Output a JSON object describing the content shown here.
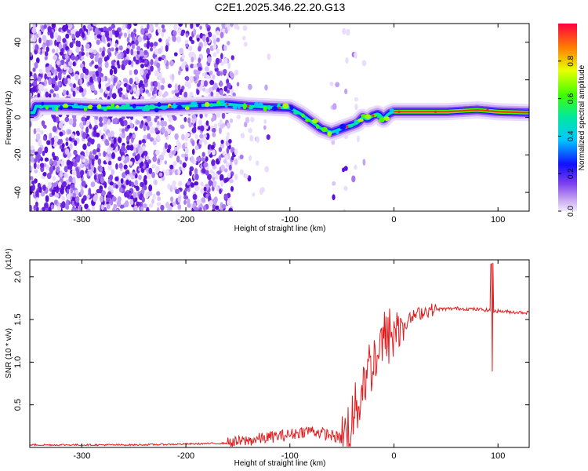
{
  "title": "C2E1.2025.346.22.20.G13",
  "chart_data": [
    {
      "type": "heatmap",
      "xlabel": "Height of straight line (km)",
      "ylabel": "Frequency (Hz)",
      "xlim": [
        -350,
        130
      ],
      "ylim": [
        -50,
        50
      ],
      "xticks": [
        -300,
        -200,
        -100,
        0,
        100
      ],
      "yticks": [
        -40,
        -20,
        0,
        20,
        40
      ],
      "ridge": {
        "x": [
          -345,
          -320,
          -300,
          -280,
          -250,
          -220,
          -200,
          -180,
          -160,
          -140,
          -120,
          -100,
          -90,
          -80,
          -70,
          -60,
          -50,
          -45,
          -40,
          -35,
          -30,
          -25,
          -20,
          -15,
          -10,
          -5,
          0,
          20,
          50,
          80,
          100,
          130
        ],
        "frequency": [
          6,
          6,
          5.5,
          5,
          5,
          5.5,
          6,
          6.5,
          7,
          6,
          5.5,
          5,
          2,
          -2,
          -6,
          -8,
          -6,
          -5,
          -4,
          -3,
          0,
          -1,
          1,
          2,
          -1,
          2,
          3,
          3,
          3,
          4,
          3,
          2.5
        ]
      },
      "colorbar": {
        "label": "Normalized spectral amplitude",
        "range": [
          0.0,
          1.0
        ],
        "ticks": [
          "0.0",
          "0.2",
          "0.4",
          "0.6",
          "0.8"
        ]
      }
    },
    {
      "type": "line",
      "xlabel": "Height of straight line (km)",
      "ylabel": "SNR (10 * v/v)",
      "multiplier": "(x10⁴)",
      "xlim": [
        -350,
        130
      ],
      "ylim": [
        0,
        2.2
      ],
      "xticks": [
        -300,
        -200,
        -100,
        0,
        100
      ],
      "yticks": [
        0.5,
        1.0,
        1.5,
        2.0
      ],
      "series": [
        {
          "name": "SNR",
          "color": "#e31a1c",
          "x": [
            -350,
            -300,
            -250,
            -200,
            -160,
            -140,
            -120,
            -100,
            -90,
            -80,
            -70,
            -60,
            -50,
            -45,
            -40,
            -35,
            -30,
            -25,
            -20,
            -15,
            -10,
            -5,
            0,
            10,
            20,
            30,
            40,
            60,
            80,
            90,
            95,
            100,
            110,
            130
          ],
          "values": [
            0.03,
            0.03,
            0.03,
            0.04,
            0.05,
            0.08,
            0.12,
            0.15,
            0.18,
            0.2,
            0.17,
            0.14,
            0.1,
            0.2,
            0.35,
            0.5,
            0.75,
            0.9,
            1.0,
            1.15,
            1.25,
            1.3,
            1.35,
            1.45,
            1.55,
            1.6,
            1.62,
            1.63,
            1.62,
            1.61,
            1.6,
            1.6,
            1.59,
            1.58
          ]
        }
      ]
    }
  ]
}
